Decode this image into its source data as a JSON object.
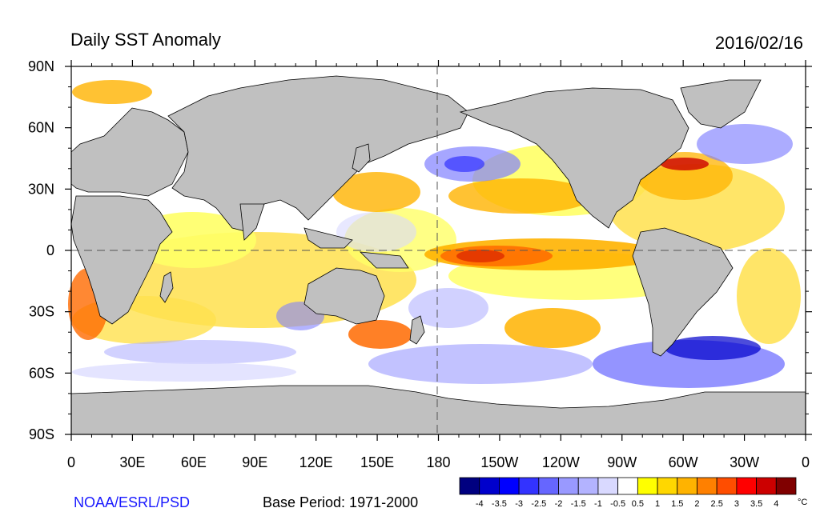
{
  "title": "Daily SST Anomaly",
  "date": "2016/02/16",
  "y_ticks": [
    "90N",
    "60N",
    "30N",
    "0",
    "30S",
    "60S",
    "90S"
  ],
  "x_ticks": [
    "0",
    "30E",
    "60E",
    "90E",
    "120E",
    "150E",
    "180",
    "150W",
    "120W",
    "90W",
    "60W",
    "30W",
    "0"
  ],
  "source_label": "NOAA/ESRL/PSD",
  "source_color": "#1a1aff",
  "base_period": "Base Period: 1971-2000",
  "colorbar": {
    "unit": "°C",
    "labels": [
      "-4",
      "-3.5",
      "-3",
      "-2.5",
      "-2",
      "-1.5",
      "-1",
      "-0.5",
      "0.5",
      "1",
      "1.5",
      "2",
      "2.5",
      "3",
      "3.5",
      "4"
    ],
    "colors": [
      "#000080",
      "#0000cc",
      "#0000ff",
      "#3333ff",
      "#6666ff",
      "#9999ff",
      "#b3b3ff",
      "#d9d9ff",
      "#ffffff",
      "#ffff00",
      "#ffd700",
      "#ffb300",
      "#ff8000",
      "#ff4d00",
      "#ff0000",
      "#cc0000",
      "#800000"
    ]
  },
  "colors": {
    "land": "#c0c0c0",
    "ocean_neutral": "#ffffff"
  }
}
